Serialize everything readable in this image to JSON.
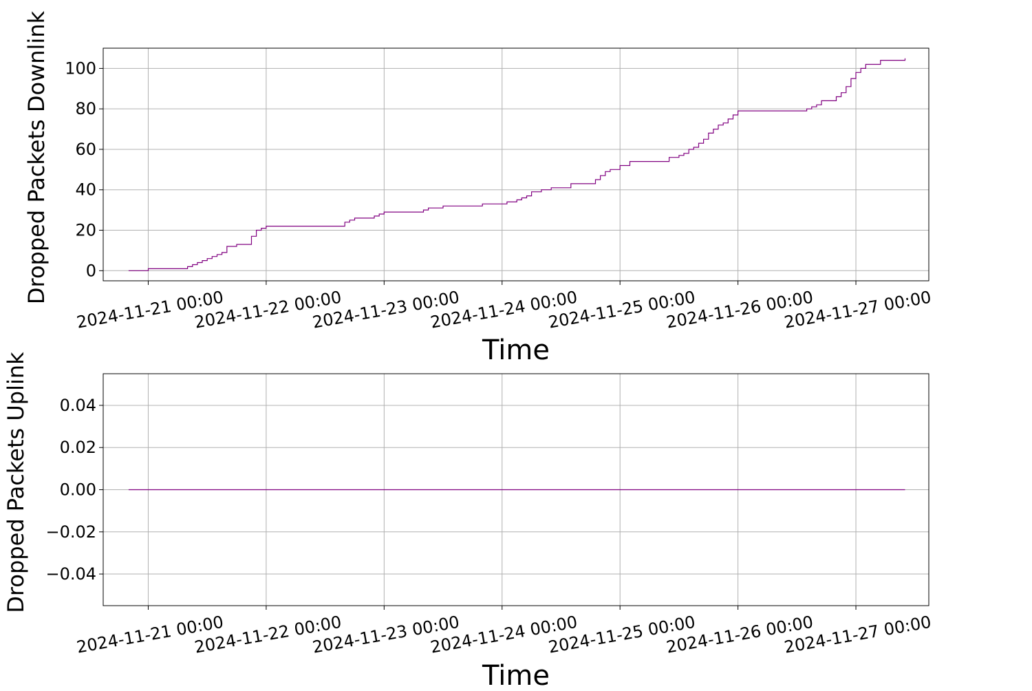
{
  "chart_data": [
    {
      "type": "line",
      "xlabel": "Time",
      "ylabel": "Dropped Packets Downlink",
      "xlim": [
        "2024-11-20 14:50",
        "2024-11-27 14:50"
      ],
      "ylim": [
        -5,
        110
      ],
      "grid": true,
      "line_color": "#800080",
      "step": true,
      "x_ticks": [
        "2024-11-21 00:00",
        "2024-11-22 00:00",
        "2024-11-23 00:00",
        "2024-11-24 00:00",
        "2024-11-25 00:00",
        "2024-11-26 00:00",
        "2024-11-27 00:00"
      ],
      "y_ticks": [
        "0",
        "20",
        "40",
        "60",
        "80",
        "100"
      ],
      "series": [
        {
          "x": [
            "2024-11-20 20:00",
            "2024-11-21 00:00",
            "2024-11-21 08:00",
            "2024-11-21 09:00",
            "2024-11-21 10:00",
            "2024-11-21 11:00",
            "2024-11-21 12:00",
            "2024-11-21 13:00",
            "2024-11-21 14:00",
            "2024-11-21 15:00",
            "2024-11-21 16:00",
            "2024-11-21 18:00",
            "2024-11-21 21:00",
            "2024-11-21 22:00",
            "2024-11-21 23:00",
            "2024-11-22 00:00",
            "2024-11-22 01:00",
            "2024-11-22 16:00",
            "2024-11-22 17:00",
            "2024-11-22 18:00",
            "2024-11-22 22:00",
            "2024-11-22 23:00",
            "2024-11-23 00:00",
            "2024-11-23 08:00",
            "2024-11-23 09:00",
            "2024-11-23 12:00",
            "2024-11-23 20:00",
            "2024-11-24 01:00",
            "2024-11-24 03:00",
            "2024-11-24 04:00",
            "2024-11-24 05:00",
            "2024-11-24 06:00",
            "2024-11-24 08:00",
            "2024-11-24 10:00",
            "2024-11-24 14:00",
            "2024-11-24 19:00",
            "2024-11-24 20:00",
            "2024-11-24 21:00",
            "2024-11-24 22:00",
            "2024-11-25 00:00",
            "2024-11-25 02:00",
            "2024-11-25 10:00",
            "2024-11-25 12:00",
            "2024-11-25 13:00",
            "2024-11-25 14:00",
            "2024-11-25 15:00",
            "2024-11-25 16:00",
            "2024-11-25 17:00",
            "2024-11-25 18:00",
            "2024-11-25 19:00",
            "2024-11-25 20:00",
            "2024-11-25 21:00",
            "2024-11-25 22:00",
            "2024-11-25 23:00",
            "2024-11-26 00:00",
            "2024-11-26 14:00",
            "2024-11-26 15:00",
            "2024-11-26 16:00",
            "2024-11-26 17:00",
            "2024-11-26 20:00",
            "2024-11-26 21:00",
            "2024-11-26 22:00",
            "2024-11-26 23:00",
            "2024-11-27 00:00",
            "2024-11-27 01:00",
            "2024-11-27 02:00",
            "2024-11-27 05:00",
            "2024-11-27 10:00"
          ],
          "y": [
            0,
            1,
            2,
            3,
            4,
            5,
            6,
            7,
            8,
            9,
            12,
            13,
            17,
            20,
            21,
            22,
            22,
            24,
            25,
            26,
            27,
            28,
            29,
            30,
            31,
            32,
            33,
            34,
            35,
            36,
            37,
            39,
            40,
            41,
            43,
            45,
            47,
            49,
            50,
            52,
            54,
            56,
            57,
            58,
            60,
            61,
            63,
            65,
            68,
            70,
            72,
            73,
            75,
            77,
            79,
            80,
            81,
            82,
            84,
            86,
            88,
            91,
            95,
            98,
            100,
            102,
            104,
            105
          ]
        }
      ]
    },
    {
      "type": "line",
      "xlabel": "Time",
      "ylabel": "Dropped Packets Uplink",
      "xlim": [
        "2024-11-20 14:50",
        "2024-11-27 14:50"
      ],
      "ylim": [
        -0.055,
        0.055
      ],
      "grid": true,
      "line_color": "#800080",
      "x_ticks": [
        "2024-11-21 00:00",
        "2024-11-22 00:00",
        "2024-11-23 00:00",
        "2024-11-24 00:00",
        "2024-11-25 00:00",
        "2024-11-26 00:00",
        "2024-11-27 00:00"
      ],
      "y_ticks": [
        "0.04",
        "0.02",
        "0.00",
        "−0.02",
        "−0.04"
      ],
      "series": [
        {
          "x": [
            "2024-11-20 20:00",
            "2024-11-27 10:00"
          ],
          "y": [
            0,
            0
          ]
        }
      ]
    }
  ]
}
